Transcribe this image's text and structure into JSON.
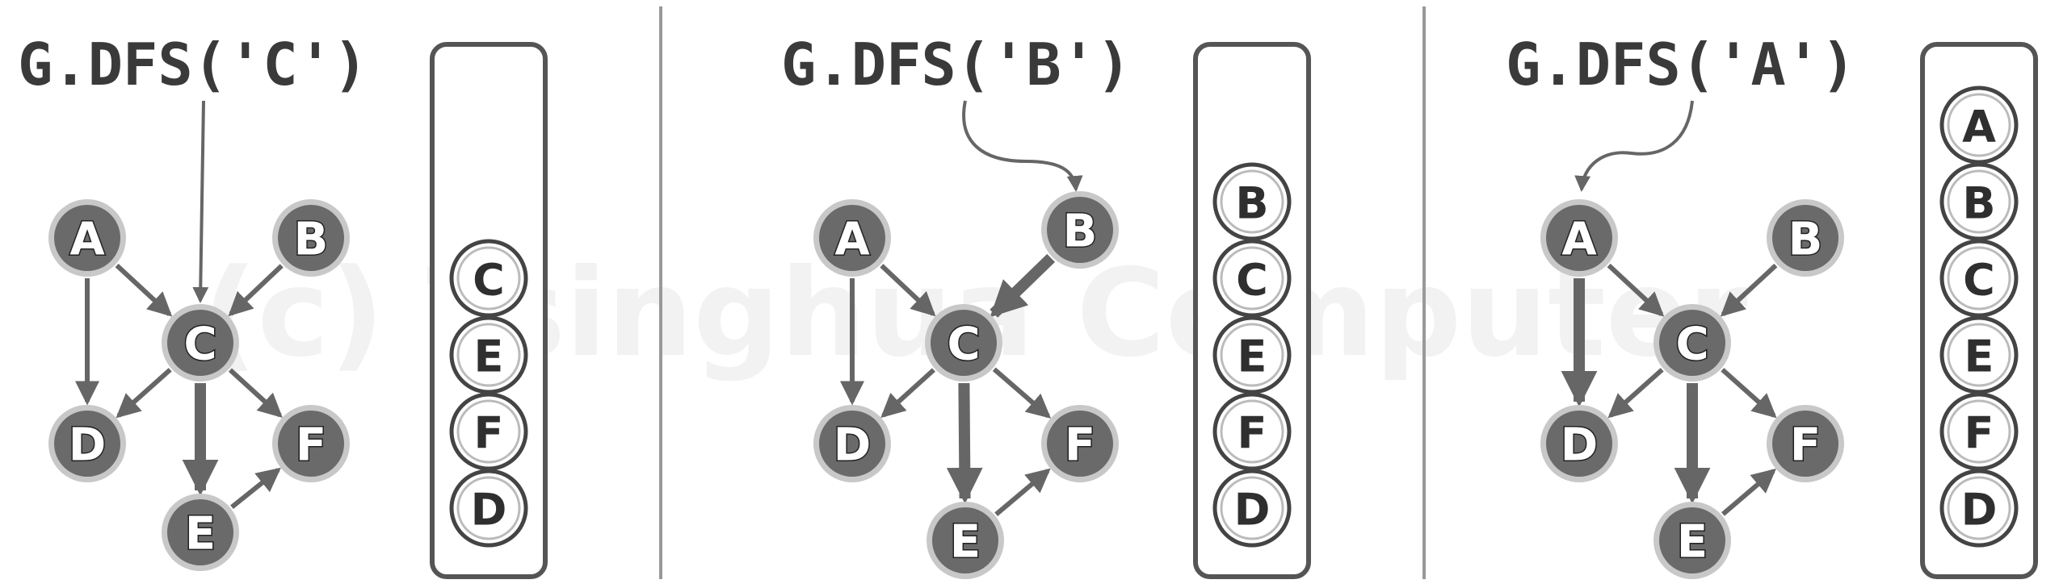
{
  "watermark": "(c) Tsinghua Computer",
  "panels": [
    {
      "call": "G.DFS('C')",
      "start": "C",
      "nodes": [
        "A",
        "B",
        "C",
        "D",
        "E",
        "F"
      ],
      "edges": [
        {
          "from": "A",
          "to": "C",
          "style": "thin"
        },
        {
          "from": "B",
          "to": "C",
          "style": "thin"
        },
        {
          "from": "A",
          "to": "D",
          "style": "thin"
        },
        {
          "from": "C",
          "to": "D",
          "style": "thin"
        },
        {
          "from": "C",
          "to": "F",
          "style": "thin"
        },
        {
          "from": "C",
          "to": "E",
          "style": "thick"
        },
        {
          "from": "E",
          "to": "F",
          "style": "thin"
        }
      ],
      "stack": [
        "C",
        "E",
        "F",
        "D"
      ]
    },
    {
      "call": "G.DFS('B')",
      "start": "B",
      "nodes": [
        "A",
        "B",
        "C",
        "D",
        "E",
        "F"
      ],
      "edges": [
        {
          "from": "A",
          "to": "C",
          "style": "thin"
        },
        {
          "from": "B",
          "to": "C",
          "style": "thick"
        },
        {
          "from": "A",
          "to": "D",
          "style": "thin"
        },
        {
          "from": "C",
          "to": "D",
          "style": "thin"
        },
        {
          "from": "C",
          "to": "F",
          "style": "thin"
        },
        {
          "from": "C",
          "to": "E",
          "style": "thick"
        },
        {
          "from": "E",
          "to": "F",
          "style": "thin"
        }
      ],
      "stack": [
        "B",
        "C",
        "E",
        "F",
        "D"
      ]
    },
    {
      "call": "G.DFS('A')",
      "start": "A",
      "nodes": [
        "A",
        "B",
        "C",
        "D",
        "E",
        "F"
      ],
      "edges": [
        {
          "from": "A",
          "to": "C",
          "style": "thin"
        },
        {
          "from": "B",
          "to": "C",
          "style": "thin"
        },
        {
          "from": "A",
          "to": "D",
          "style": "thick"
        },
        {
          "from": "C",
          "to": "D",
          "style": "thin"
        },
        {
          "from": "C",
          "to": "F",
          "style": "thin"
        },
        {
          "from": "C",
          "to": "E",
          "style": "thick"
        },
        {
          "from": "E",
          "to": "F",
          "style": "thin"
        }
      ],
      "stack": [
        "A",
        "B",
        "C",
        "E",
        "F",
        "D"
      ]
    }
  ]
}
